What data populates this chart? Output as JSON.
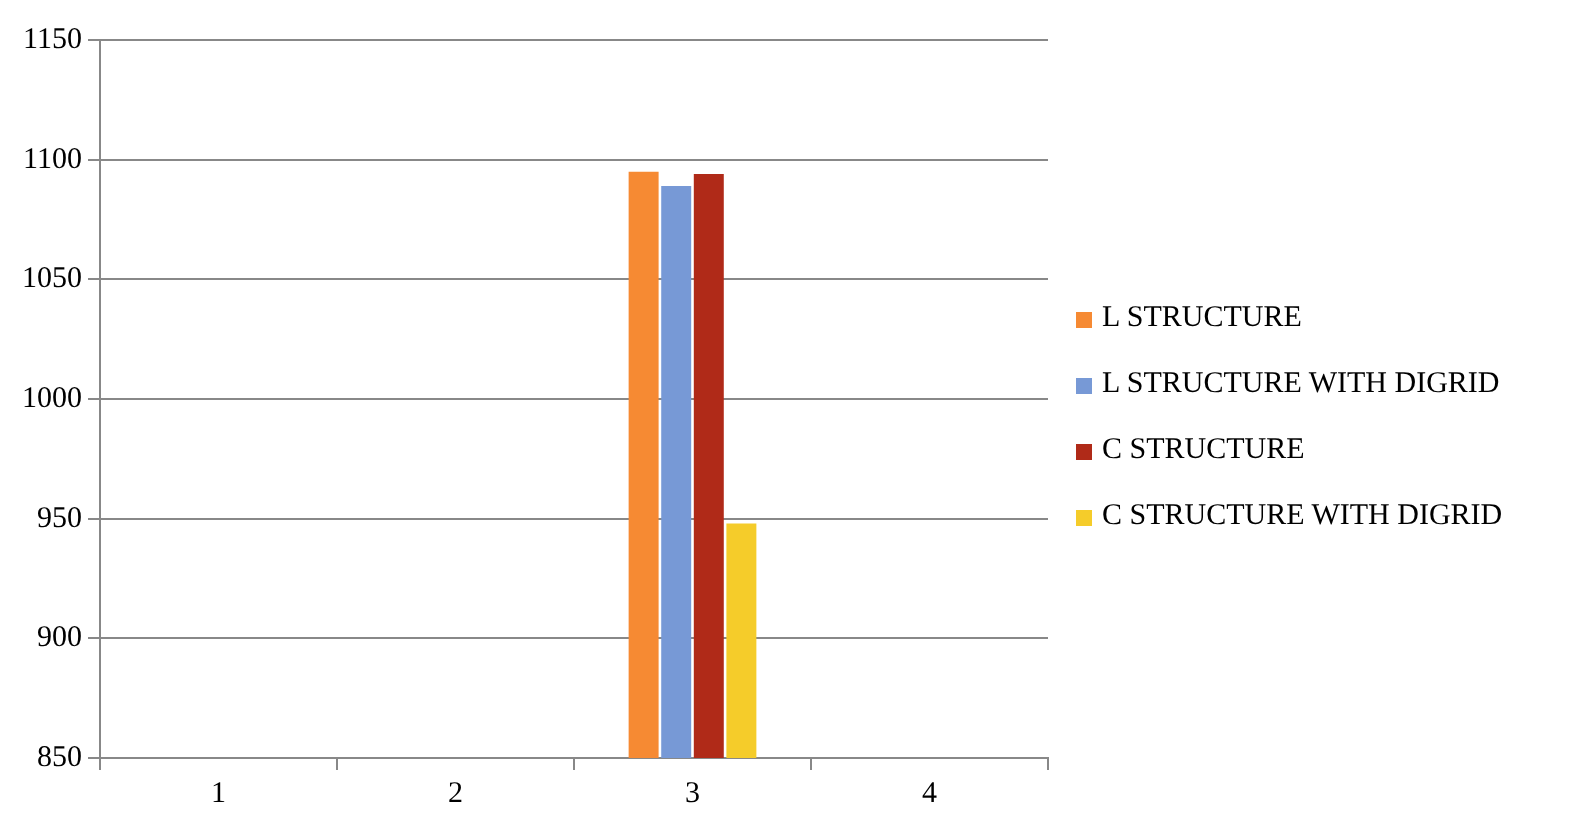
{
  "chart_data": {
    "type": "bar",
    "categories": [
      "1",
      "2",
      "3",
      "4"
    ],
    "series": [
      {
        "name": "L STRUCTURE",
        "color": "#f68a33",
        "values": [
          null,
          null,
          1095,
          null
        ]
      },
      {
        "name": "L STRUCTURE WITH DIGRID",
        "color": "#7799d6",
        "values": [
          null,
          null,
          1089,
          null
        ]
      },
      {
        "name": "C STRUCTURE",
        "color": "#b02a18",
        "values": [
          null,
          null,
          1094,
          null
        ]
      },
      {
        "name": "C STRUCTURE WITH DIGRID",
        "color": "#f5cc2a",
        "values": [
          null,
          null,
          948,
          null
        ]
      }
    ],
    "ylim": [
      850,
      1150
    ],
    "yticks": [
      850,
      900,
      950,
      1000,
      1050,
      1100,
      1150
    ],
    "grid": "y",
    "legend": "right"
  }
}
